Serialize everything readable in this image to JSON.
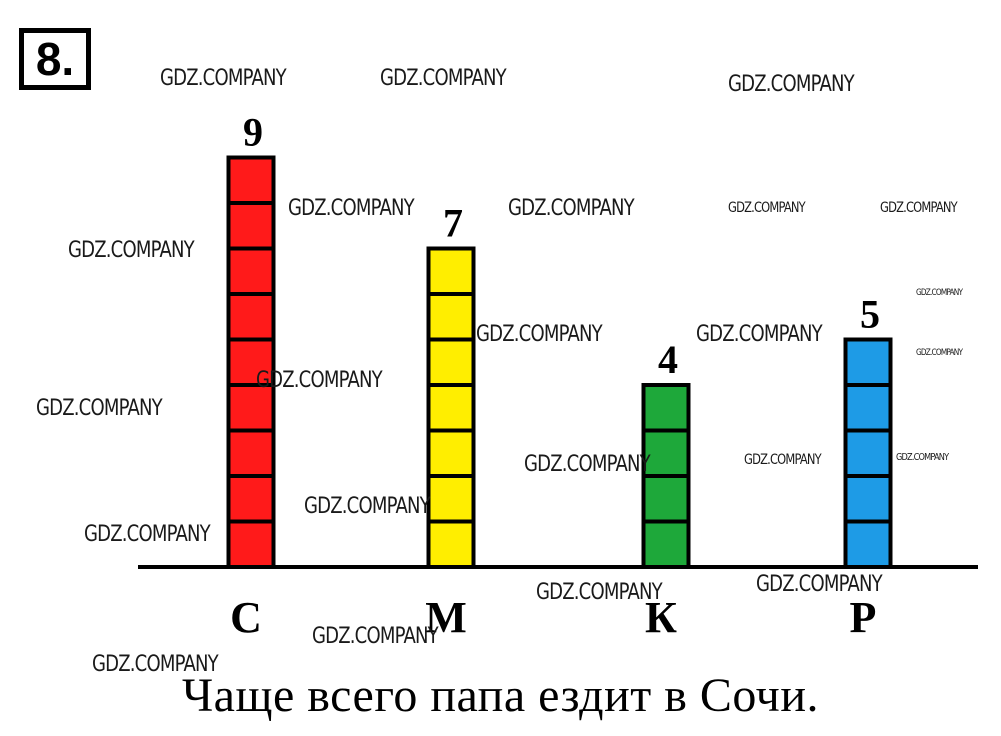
{
  "task": {
    "number": "8."
  },
  "chart_data": {
    "type": "bar",
    "categories": [
      "С",
      "М",
      "К",
      "Р"
    ],
    "values": [
      9,
      7,
      4,
      5
    ],
    "colors": [
      "#ff1a1a",
      "#ffee00",
      "#1ea83a",
      "#1e9be6"
    ],
    "ylim": [
      0,
      9
    ],
    "title": "",
    "xlabel": "",
    "ylabel": ""
  },
  "answer": "Чаще всего папа ездит в Сочи.",
  "watermark_text": "GDZ.COMPANY"
}
